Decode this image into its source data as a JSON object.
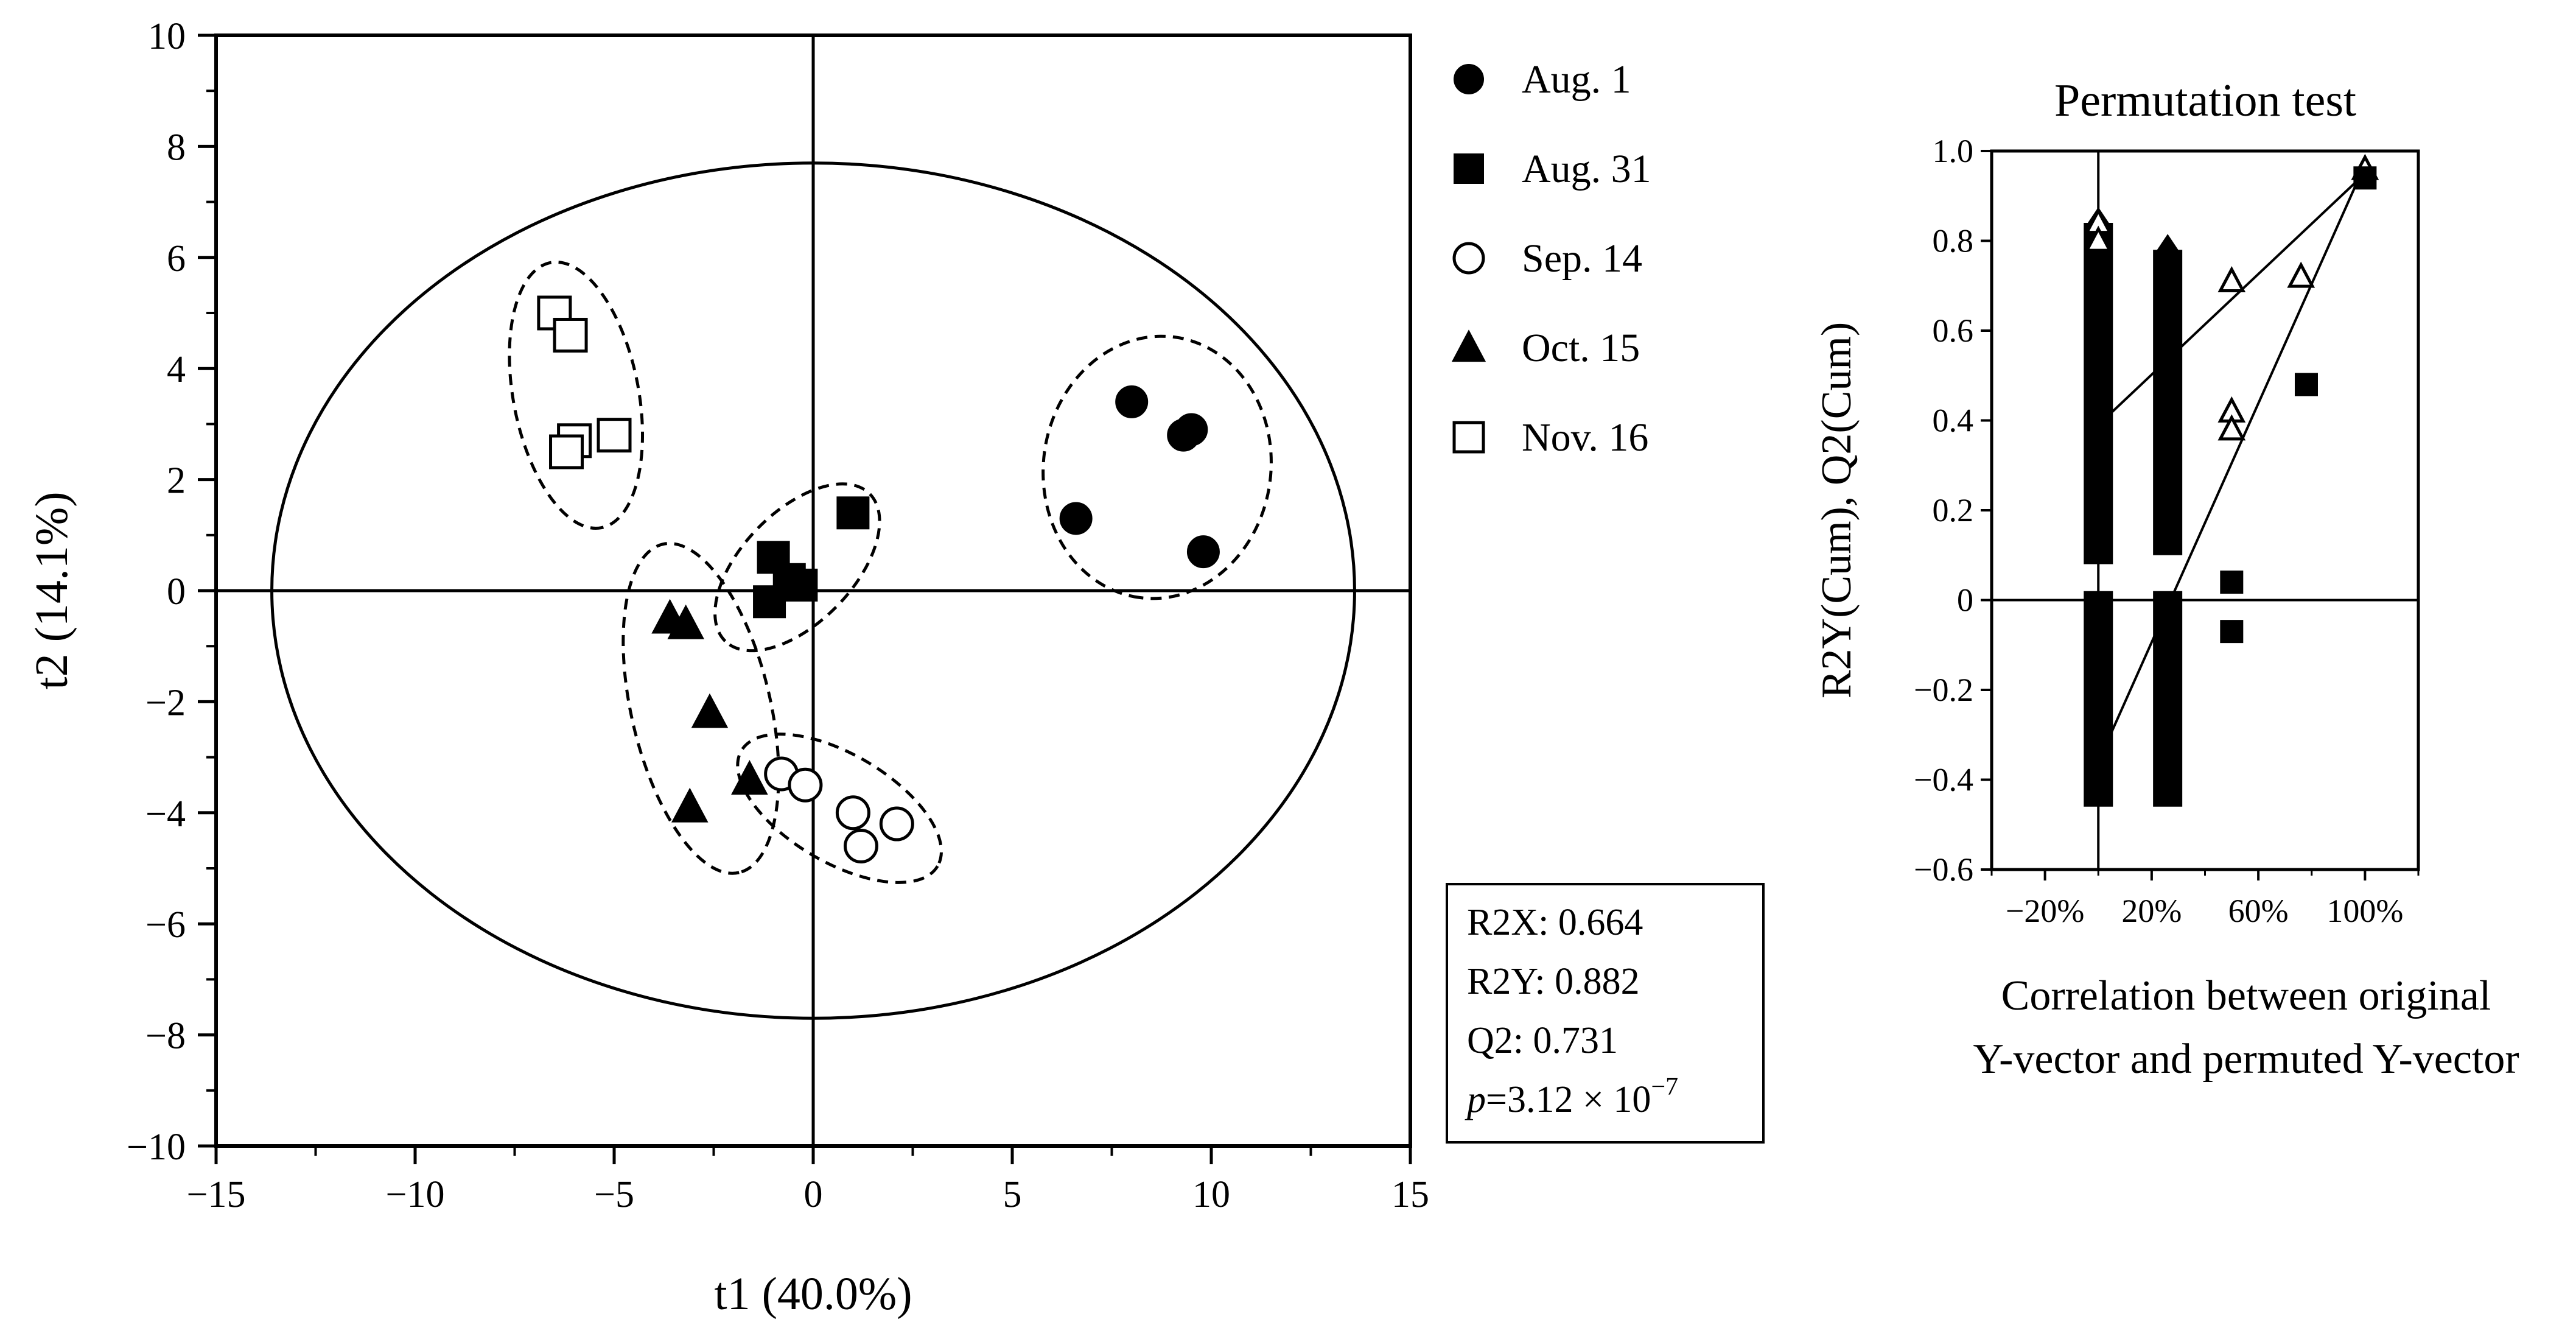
{
  "chart_data": [
    {
      "type": "scatter",
      "xlabel": "t1 (40.0%)",
      "ylabel": "t2 (14.1%)",
      "xlim": [
        -15,
        15
      ],
      "ylim": [
        -10,
        10
      ],
      "x_ticks": [
        "−15",
        "−10",
        "−5",
        "0",
        "5",
        "10",
        "15"
      ],
      "y_ticks": [
        "−10",
        "−8",
        "−6",
        "−4",
        "−2",
        "0",
        "2",
        "4",
        "6",
        "8",
        "10"
      ],
      "legend_position": "right",
      "series": [
        {
          "name": "Aug. 1",
          "marker": "filled-circle",
          "points": [
            [
              8.0,
              3.4
            ],
            [
              9.3,
              2.8
            ],
            [
              9.5,
              2.9
            ],
            [
              6.6,
              1.3
            ],
            [
              9.8,
              0.7
            ]
          ]
        },
        {
          "name": "Aug. 31",
          "marker": "filled-square",
          "points": [
            [
              1.0,
              1.4
            ],
            [
              -1.0,
              0.6
            ],
            [
              -0.6,
              0.2
            ],
            [
              -0.3,
              0.1
            ],
            [
              -1.1,
              -0.2
            ]
          ]
        },
        {
          "name": "Sep. 14",
          "marker": "open-circle",
          "points": [
            [
              -0.8,
              -3.3
            ],
            [
              -0.2,
              -3.5
            ],
            [
              1.0,
              -4.0
            ],
            [
              2.1,
              -4.2
            ],
            [
              1.2,
              -4.6
            ]
          ]
        },
        {
          "name": "Oct. 15",
          "marker": "filled-triangle",
          "points": [
            [
              -3.6,
              -0.5
            ],
            [
              -3.2,
              -0.6
            ],
            [
              -2.6,
              -2.2
            ],
            [
              -1.6,
              -3.4
            ],
            [
              -3.1,
              -3.9
            ]
          ]
        },
        {
          "name": "Nov. 16",
          "marker": "open-square",
          "points": [
            [
              -6.5,
              5.0
            ],
            [
              -6.1,
              4.6
            ],
            [
              -6.0,
              2.7
            ],
            [
              -5.0,
              2.8
            ],
            [
              -6.2,
              2.5
            ]
          ]
        }
      ],
      "stats": {
        "r2x": "R2X: 0.664",
        "r2y": "R2Y: 0.882",
        "q2": "Q2: 0.731",
        "p_prefix": "p",
        "p_value": "=3.12 × 10",
        "p_exp": "−7"
      }
    },
    {
      "type": "scatter",
      "title": "Permutation test",
      "xlabel_lines": [
        "Correlation between original",
        "Y-vector and permuted Y-vector"
      ],
      "ylabel": "R2Y(Cum),  Q2(Cum)",
      "xlim": [
        -0.4,
        1.2
      ],
      "ylim": [
        -0.6,
        1.0
      ],
      "x_ticks": [
        {
          "value": -0.2,
          "label": "−20%"
        },
        {
          "value": 0.2,
          "label": "20%"
        },
        {
          "value": 0.6,
          "label": "60%"
        },
        {
          "value": 1.0,
          "label": "100%"
        }
      ],
      "y_ticks": [
        "−0.6",
        "−0.4",
        "−0.2",
        "0",
        "0.2",
        "0.4",
        "0.6",
        "0.8",
        "1.0"
      ],
      "series": [
        {
          "name": "R2Y(Cum)",
          "marker": "open-triangle",
          "bands": [
            {
              "x": 0.0,
              "ymin": 0.08,
              "ymax": 0.84
            },
            {
              "x": 0.26,
              "ymin": 0.1,
              "ymax": 0.78
            }
          ],
          "points": [
            [
              0.0,
              0.84
            ],
            [
              0.0,
              0.8
            ],
            [
              0.5,
              0.71
            ],
            [
              0.5,
              0.42
            ],
            [
              0.5,
              0.38
            ],
            [
              0.76,
              0.72
            ],
            [
              1.0,
              0.96
            ]
          ],
          "regression": {
            "x": [
              0.0,
              1.0
            ],
            "y": [
              0.39,
              0.95
            ]
          }
        },
        {
          "name": "Q2(Cum)",
          "marker": "filled-square",
          "bands": [
            {
              "x": 0.0,
              "ymin": -0.46,
              "ymax": 0.02
            },
            {
              "x": 0.26,
              "ymin": -0.46,
              "ymax": 0.02
            }
          ],
          "points": [
            [
              0.5,
              0.04
            ],
            [
              0.5,
              -0.07
            ],
            [
              0.78,
              0.48
            ],
            [
              1.0,
              0.94
            ]
          ],
          "regression": {
            "x": [
              0.0,
              1.0
            ],
            "y": [
              -0.36,
              0.97
            ]
          }
        }
      ]
    }
  ]
}
